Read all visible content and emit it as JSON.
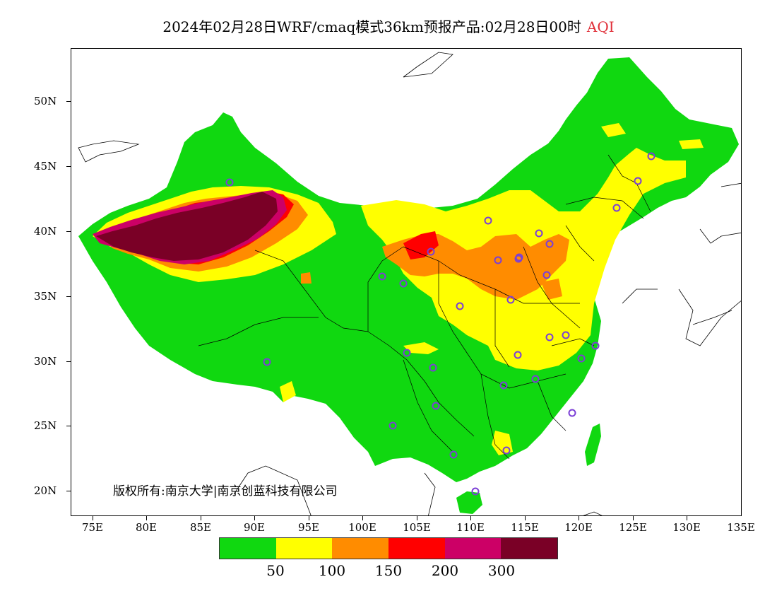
{
  "title": "2024年02月28日WRF/cmaq模式36km预报产品:02月28日00时",
  "title_variable": "AQI",
  "copyright": "版权所有:南京大学|南京创蓝科技有限公司",
  "lat_labels": [
    "50N",
    "45N",
    "40N",
    "35N",
    "30N",
    "25N",
    "20N"
  ],
  "lon_labels": [
    "75E",
    "80E",
    "85E",
    "90E",
    "95E",
    "100E",
    "105E",
    "110E",
    "115E",
    "120E",
    "125E",
    "130E",
    "135E"
  ],
  "legend": {
    "colors": [
      "#10d810",
      "#ffff00",
      "#ff8c00",
      "#ff0000",
      "#cc0066",
      "#7a0026"
    ],
    "labels": [
      "50",
      "100",
      "150",
      "200",
      "300"
    ]
  },
  "colors": {
    "good": "#10d810",
    "moderate": "#ffff00",
    "unhealthy_sensitive": "#ff8c00",
    "unhealthy": "#ff0000",
    "very_unhealthy": "#cc0066",
    "hazardous": "#7a0026",
    "station_marker": "#7b3fd6"
  }
}
